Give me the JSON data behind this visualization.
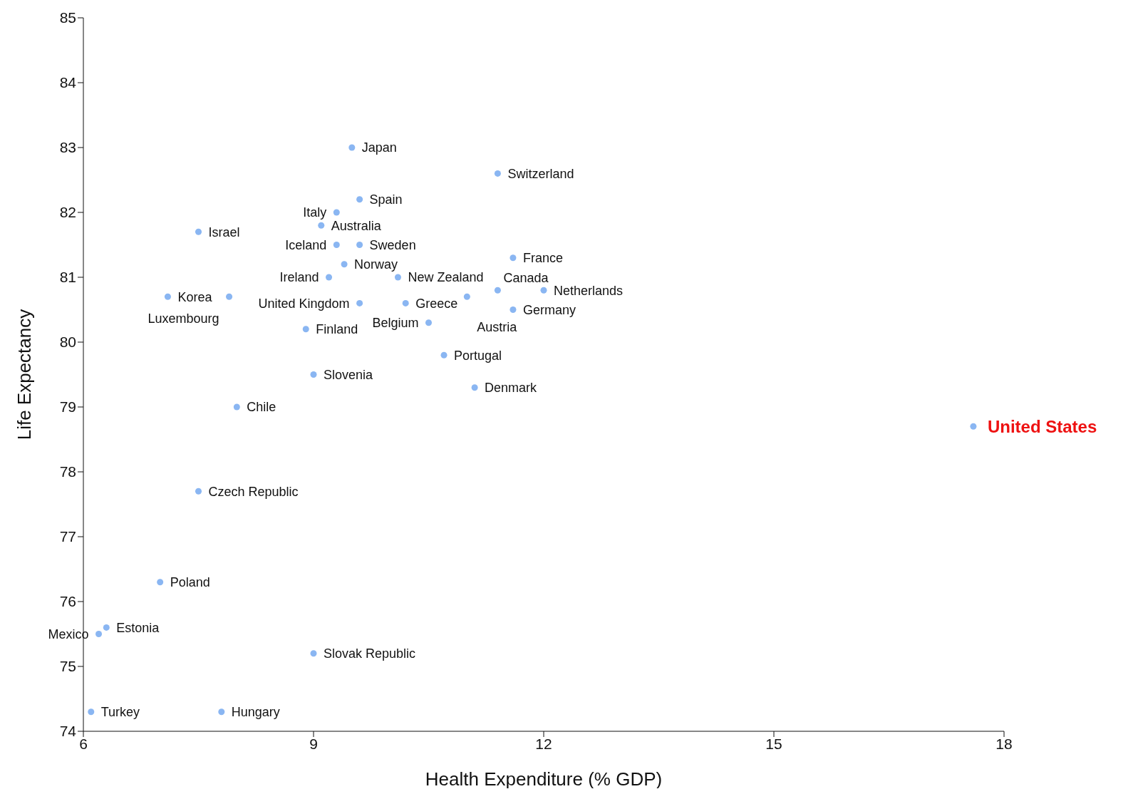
{
  "chart_data": {
    "type": "scatter",
    "xlabel": "Health Expenditure (%  GDP)",
    "ylabel": "Life Expectancy",
    "xlim": [
      6,
      18
    ],
    "xticks": [
      6,
      9,
      12,
      15,
      18
    ],
    "ylim": [
      74,
      85
    ],
    "yticks": [
      74,
      75,
      76,
      77,
      78,
      79,
      80,
      81,
      82,
      83,
      84,
      85
    ],
    "marker": "circle",
    "series": [
      {
        "color": "#8ab6f2",
        "x": [
          9.5,
          11.4,
          9.6,
          9.3,
          9.1,
          7.5,
          9.3,
          9.6,
          9.4,
          11.6,
          9.2,
          10.1,
          11.4,
          12.0,
          11.0,
          10.2,
          9.6,
          7.1,
          7.9,
          11.6,
          10.5,
          8.9,
          10.7,
          9.0,
          11.1,
          8.0,
          17.6,
          7.5,
          7.0,
          6.3,
          6.2,
          9.0,
          6.1,
          7.8
        ],
        "values": [
          83.0,
          82.6,
          82.2,
          82.0,
          81.8,
          81.7,
          81.5,
          81.5,
          81.2,
          81.3,
          81.0,
          81.0,
          80.8,
          80.8,
          80.7,
          80.6,
          80.6,
          80.7,
          80.7,
          80.5,
          80.3,
          80.2,
          79.8,
          79.5,
          79.3,
          79.0,
          78.7,
          77.7,
          76.3,
          75.6,
          75.5,
          75.2,
          74.3,
          74.3
        ],
        "value_labels": [
          "Japan",
          "Switzerland",
          "Spain",
          "Italy",
          "Australia",
          "Israel",
          "Iceland",
          "Sweden",
          "Norway",
          "France",
          "Ireland",
          "New Zealand",
          "Canada",
          "Netherlands",
          "Austria",
          "Greece",
          "United Kingdom",
          "Korea",
          "Luxembourg",
          "Germany",
          "Belgium",
          "Finland",
          "Portugal",
          "Slovenia",
          "Denmark",
          "Chile",
          null,
          "Czech Republic",
          "Poland",
          "Estonia",
          "Mexico",
          "Slovak Republic",
          "Turkey",
          "Hungary"
        ]
      }
    ],
    "annotations": [
      {
        "text": "United States",
        "x": 17.6,
        "y": 78.7
      }
    ]
  }
}
